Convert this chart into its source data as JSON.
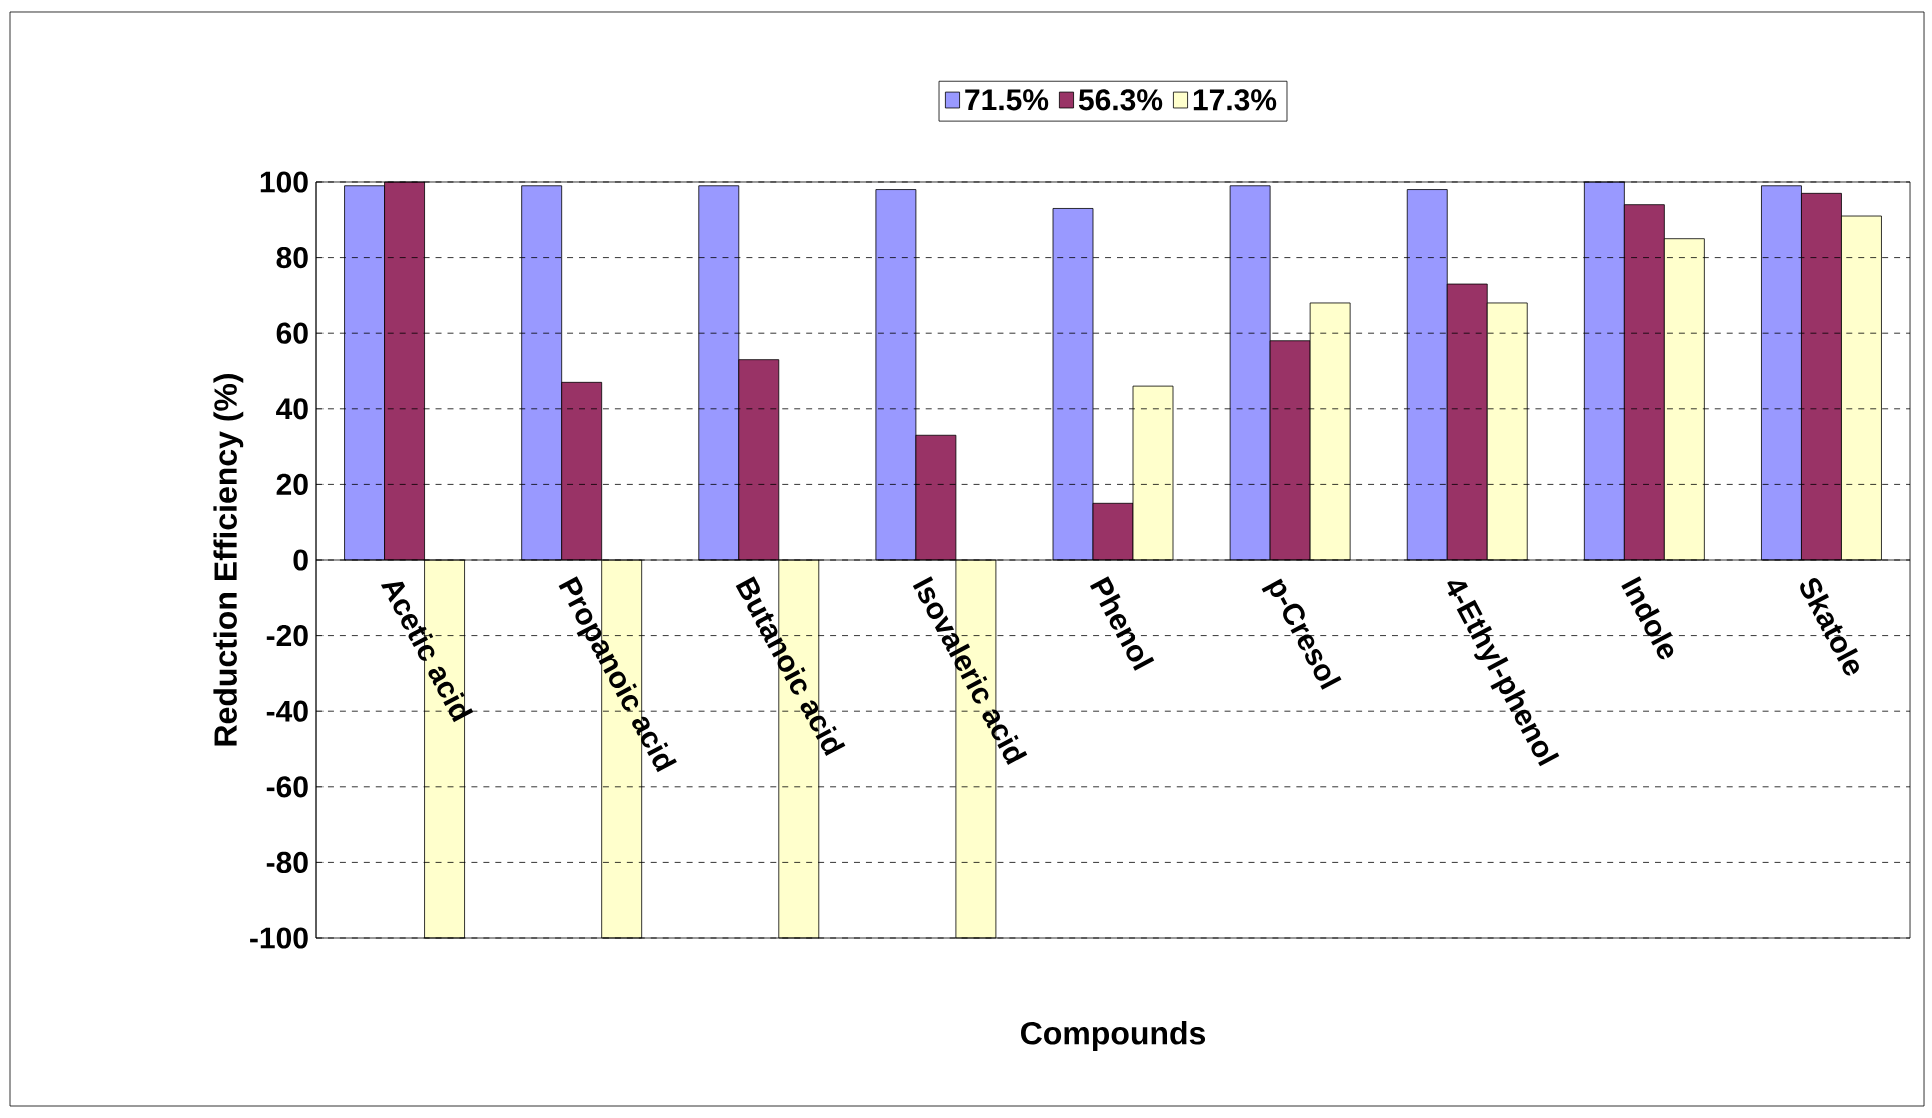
{
  "chart_data": {
    "type": "bar",
    "xlabel": "Compounds",
    "ylabel": "Reduction Efficiency (%)",
    "categories": [
      "Acetic acid",
      "Propanoic acid",
      "Butanoic acid",
      "Isovaleric acid",
      "Phenol",
      "p-Cresol",
      "4-Ethyl-phenol",
      "Indole",
      "Skatole"
    ],
    "series": [
      {
        "name": "71.5%",
        "color": "#9999ff",
        "values": [
          99,
          99,
          99,
          98,
          93,
          99,
          98,
          100,
          99
        ]
      },
      {
        "name": "56.3%",
        "color": "#993366",
        "values": [
          100,
          47,
          53,
          33,
          15,
          58,
          73,
          94,
          97
        ]
      },
      {
        "name": "17.3%",
        "color": "#ffffcc",
        "values": [
          -100,
          -100,
          -100,
          -100,
          46,
          68,
          68,
          85,
          91
        ]
      }
    ],
    "ylim": [
      -100,
      100
    ],
    "yticks": [
      -100,
      -80,
      -60,
      -40,
      -20,
      0,
      20,
      40,
      60,
      80,
      100
    ],
    "grid": "y",
    "legend": "top"
  }
}
